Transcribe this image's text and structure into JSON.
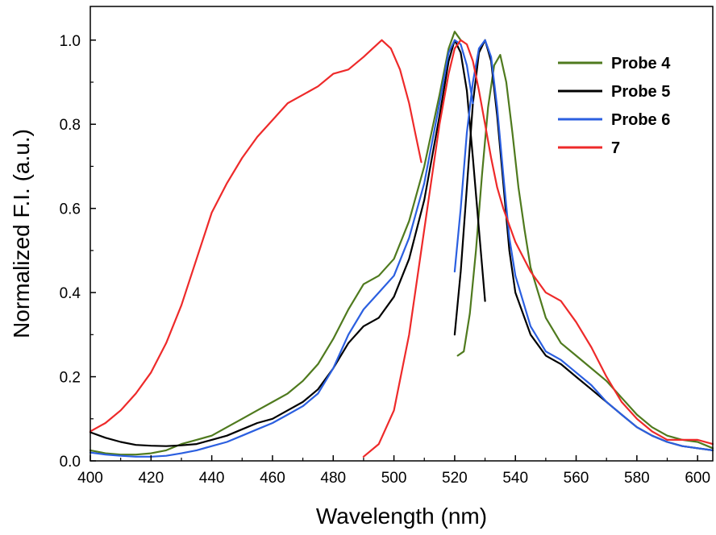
{
  "chart_data": {
    "type": "line",
    "title": "",
    "xlabel": "Wavelength (nm)",
    "ylabel": "Normalized F.I. (a.u.)",
    "xlim": [
      400,
      605
    ],
    "ylim": [
      0.0,
      1.08
    ],
    "x_ticks": [
      400,
      420,
      440,
      460,
      480,
      500,
      520,
      540,
      560,
      580,
      600
    ],
    "x_tick_labels": [
      "400",
      "420",
      "440",
      "460",
      "480",
      "500",
      "520",
      "540",
      "560",
      "580",
      "600"
    ],
    "y_ticks": [
      0.0,
      0.2,
      0.4,
      0.6,
      0.8,
      1.0
    ],
    "y_tick_labels": [
      "0.0",
      "0.2",
      "0.4",
      "0.6",
      "0.8",
      "1.0"
    ],
    "grid": false,
    "legend_position": "top-right",
    "series": [
      {
        "name": "Probe 4",
        "color": "#4f7a1e",
        "segments": [
          {
            "x": [
              400,
              405,
              410,
              415,
              420,
              425,
              430,
              435,
              440,
              445,
              450,
              455,
              460,
              465,
              470,
              475,
              480,
              485,
              490,
              495,
              500,
              505,
              510,
              515,
              518,
              520,
              522
            ],
            "y": [
              0.025,
              0.018,
              0.015,
              0.015,
              0.018,
              0.025,
              0.04,
              0.05,
              0.06,
              0.08,
              0.1,
              0.12,
              0.14,
              0.16,
              0.19,
              0.23,
              0.29,
              0.36,
              0.42,
              0.44,
              0.48,
              0.57,
              0.7,
              0.87,
              0.98,
              1.02,
              1.0
            ]
          },
          {
            "x": [
              521,
              523,
              525,
              527,
              529,
              531,
              533,
              535,
              537,
              539,
              541,
              543,
              545,
              550,
              555,
              560,
              565,
              570,
              575,
              580,
              585,
              590,
              595,
              600,
              605
            ],
            "y": [
              0.25,
              0.26,
              0.35,
              0.5,
              0.68,
              0.84,
              0.94,
              0.965,
              0.9,
              0.78,
              0.65,
              0.55,
              0.46,
              0.34,
              0.28,
              0.25,
              0.22,
              0.19,
              0.15,
              0.11,
              0.08,
              0.06,
              0.05,
              0.045,
              0.03
            ]
          }
        ]
      },
      {
        "name": "Probe 5",
        "color": "#000000",
        "segments": [
          {
            "x": [
              400,
              405,
              410,
              415,
              420,
              425,
              430,
              435,
              440,
              445,
              450,
              455,
              460,
              465,
              470,
              475,
              480,
              485,
              490,
              495,
              500,
              505,
              510,
              515,
              518,
              520,
              522,
              524,
              526,
              528,
              530
            ],
            "y": [
              0.068,
              0.055,
              0.045,
              0.038,
              0.036,
              0.035,
              0.037,
              0.04,
              0.05,
              0.06,
              0.075,
              0.09,
              0.1,
              0.12,
              0.14,
              0.17,
              0.22,
              0.28,
              0.32,
              0.34,
              0.39,
              0.48,
              0.62,
              0.82,
              0.95,
              1.0,
              0.97,
              0.88,
              0.72,
              0.55,
              0.38
            ]
          },
          {
            "x": [
              520,
              522,
              524,
              526,
              528,
              530,
              532,
              534,
              536,
              538,
              540,
              545,
              550,
              555,
              560,
              565,
              570,
              575,
              580,
              585,
              590,
              595,
              600,
              605
            ],
            "y": [
              0.3,
              0.45,
              0.65,
              0.85,
              0.97,
              1.0,
              0.95,
              0.82,
              0.66,
              0.5,
              0.4,
              0.3,
              0.25,
              0.23,
              0.2,
              0.17,
              0.14,
              0.11,
              0.08,
              0.06,
              0.045,
              0.035,
              0.03,
              0.025
            ]
          }
        ]
      },
      {
        "name": "Probe 6",
        "color": "#2b5fe0",
        "segments": [
          {
            "x": [
              400,
              405,
              410,
              415,
              420,
              425,
              430,
              435,
              440,
              445,
              450,
              455,
              460,
              465,
              470,
              475,
              480,
              485,
              490,
              495,
              500,
              505,
              510,
              515,
              518,
              520,
              522,
              524,
              526
            ],
            "y": [
              0.02,
              0.015,
              0.012,
              0.01,
              0.01,
              0.012,
              0.018,
              0.025,
              0.035,
              0.045,
              0.06,
              0.075,
              0.09,
              0.11,
              0.13,
              0.16,
              0.22,
              0.3,
              0.36,
              0.4,
              0.44,
              0.53,
              0.66,
              0.85,
              0.97,
              1.0,
              0.99,
              0.94,
              0.85
            ]
          },
          {
            "x": [
              520,
              522,
              524,
              526,
              528,
              530,
              532,
              534,
              536,
              538,
              540,
              545,
              550,
              555,
              560,
              565,
              570,
              575,
              580,
              585,
              590,
              595,
              600,
              605
            ],
            "y": [
              0.45,
              0.6,
              0.78,
              0.9,
              0.98,
              1.0,
              0.96,
              0.84,
              0.68,
              0.53,
              0.44,
              0.32,
              0.26,
              0.24,
              0.21,
              0.18,
              0.14,
              0.11,
              0.08,
              0.06,
              0.045,
              0.035,
              0.03,
              0.025
            ]
          }
        ]
      },
      {
        "name": "7",
        "color": "#ee2a2a",
        "segments": [
          {
            "x": [
              400,
              405,
              410,
              415,
              420,
              425,
              430,
              435,
              440,
              445,
              450,
              455,
              460,
              465,
              470,
              475,
              480,
              485,
              490,
              493,
              496,
              499,
              502,
              505,
              507,
              509
            ],
            "y": [
              0.07,
              0.09,
              0.12,
              0.16,
              0.21,
              0.28,
              0.37,
              0.48,
              0.59,
              0.66,
              0.72,
              0.77,
              0.81,
              0.85,
              0.87,
              0.89,
              0.92,
              0.93,
              0.96,
              0.98,
              1.0,
              0.98,
              0.93,
              0.85,
              0.78,
              0.71
            ]
          },
          {
            "x": [
              490,
              495,
              500,
              505,
              510,
              515,
              518,
              520,
              522,
              524,
              526,
              528,
              530,
              532,
              534,
              536,
              538,
              540,
              545,
              550,
              555,
              560,
              565,
              570,
              575,
              580,
              585,
              590,
              595,
              600,
              605
            ],
            "y": [
              0.01,
              0.04,
              0.12,
              0.3,
              0.55,
              0.8,
              0.92,
              0.98,
              1.0,
              0.99,
              0.95,
              0.88,
              0.8,
              0.72,
              0.65,
              0.6,
              0.56,
              0.52,
              0.45,
              0.4,
              0.38,
              0.33,
              0.27,
              0.2,
              0.14,
              0.1,
              0.07,
              0.05,
              0.05,
              0.05,
              0.04
            ]
          }
        ]
      }
    ]
  }
}
